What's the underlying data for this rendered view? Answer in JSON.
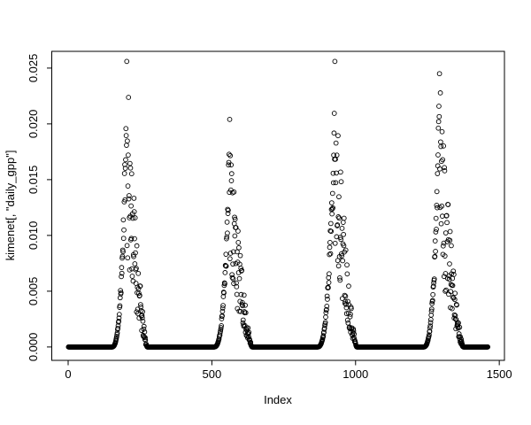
{
  "figure": {
    "background": "#ffffff",
    "foreground": "#000000"
  },
  "chart_data": {
    "type": "scatter",
    "title": "",
    "xlabel": "Index",
    "ylabel": "kimenet[, \"daily_gpp\"]",
    "marker": "open-circle",
    "point_color": "#000000",
    "grid": false,
    "legend": null,
    "n_points": 1460,
    "x_range_data": [
      1,
      1460
    ],
    "xlim": [
      -57,
      1518
    ],
    "ylim": [
      -0.0012,
      0.0265
    ],
    "x_ticks": [
      0,
      500,
      1000,
      1500
    ],
    "y_ticks": [
      {
        "label": "0.000",
        "value": 0.0
      },
      {
        "label": "0.005",
        "value": 0.005
      },
      {
        "label": "0.010",
        "value": 0.01
      },
      {
        "label": "0.015",
        "value": 0.015
      },
      {
        "label": "0.020",
        "value": 0.02
      },
      {
        "label": "0.025",
        "value": 0.025
      }
    ],
    "zero_segments": [
      [
        1,
        150
      ],
      [
        276,
        505
      ],
      [
        641,
        865
      ],
      [
        1005,
        1234
      ],
      [
        1376,
        1460
      ]
    ],
    "seasons": [
      {
        "start": 151,
        "peak_x": 204,
        "peak_y": 0.0256,
        "end": 275
      },
      {
        "start": 506,
        "peak_x": 562,
        "peak_y": 0.0204,
        "end": 640
      },
      {
        "start": 866,
        "peak_x": 928,
        "peak_y": 0.0256,
        "end": 1004
      },
      {
        "start": 1235,
        "peak_x": 1292,
        "peak_y": 0.0245,
        "end": 1375
      }
    ],
    "rise_exponent": 3,
    "fall_exponent": 1.4,
    "rise_noise": 0.35,
    "fall_noise_floor": 0.3,
    "seed": 11
  }
}
